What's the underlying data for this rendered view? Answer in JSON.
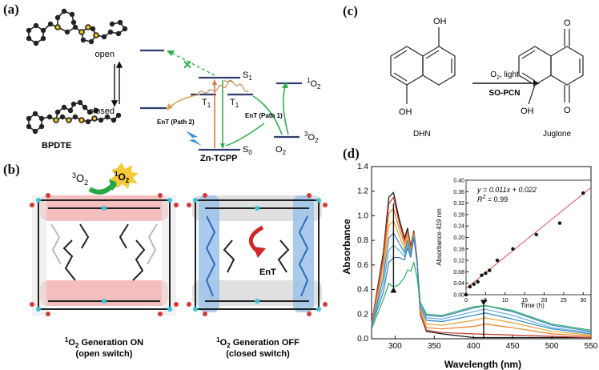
{
  "panel_labels": {
    "a": "(a)",
    "b": "(b)",
    "c": "(c)",
    "d": "(d)"
  },
  "panel_a": {
    "state_open": "open",
    "state_closed": "closed",
    "molecule_name": "BPDTE",
    "s1": "S",
    "s1_sub": "1",
    "t1_left": "T",
    "t1_left_sub": "1",
    "t1_right": "T",
    "t1_right_sub": "1",
    "s0": "S",
    "s0_sub": "0",
    "singlet_o2_sup": "1",
    "singlet_o2": "O",
    "singlet_o2_sub": "2",
    "triplet_o2_sup": "3",
    "triplet_o2": "O",
    "triplet_o2_sub": "2",
    "o2": "O",
    "o2_sub": "2",
    "path2_label": "EnT (Path 2)",
    "path1_label": "EnT (Path 1)",
    "sensitizer": "Zn-TCPP",
    "blocked_mark": "✕"
  },
  "panel_b": {
    "triplet_o2_sup": "3",
    "triplet_o2": "O",
    "triplet_o2_sub": "2",
    "singlet_o2_sup": "1",
    "singlet_o2": "O",
    "singlet_o2_sub": "2",
    "ent_label": "EnT",
    "left_caption_sup": "1",
    "left_caption_o": "O",
    "left_caption_sub": "2",
    "left_caption_rest": " Generation ON",
    "left_caption_line2": "(open switch)",
    "right_caption_sup": "1",
    "right_caption_o": "O",
    "right_caption_sub": "2",
    "right_caption_rest": " Generation OFF",
    "right_caption_line2": "(closed switch)"
  },
  "panel_c": {
    "oh_top": "OH",
    "oh_bottom": "OH",
    "oh_product": "OH",
    "o_top": "O",
    "o_bottom": "O",
    "conditions_top": "O",
    "conditions_top_sub": "2",
    "conditions_top_rest": ", light",
    "conditions_bottom": "SO-PCN",
    "reactant_name": "DHN",
    "product_name": "Juglone"
  },
  "chart_data": [
    {
      "type": "line",
      "title": "",
      "xlabel": "Wavelength (nm)",
      "ylabel": "Absorbance",
      "xlim": [
        270,
        550
      ],
      "ylim": [
        0,
        1.4
      ],
      "xticks": [
        300,
        350,
        400,
        450,
        500,
        550
      ],
      "yticks": [
        0.0,
        0.2,
        0.4,
        0.6,
        0.8,
        1.0,
        1.2,
        1.4
      ],
      "grid": false,
      "series_colors": [
        "#111111",
        "#c0392b",
        "#e67e22",
        "#e8a33a",
        "#2e86c1",
        "#5dade2",
        "#3a7bbf",
        "#27ae60"
      ],
      "series": [
        {
          "values": [
            [
              270,
              0.12
            ],
            [
              285,
              0.7
            ],
            [
              292,
              1.15
            ],
            [
              298,
              1.19
            ],
            [
              305,
              0.98
            ],
            [
              312,
              0.82
            ],
            [
              316,
              0.9
            ],
            [
              320,
              0.75
            ],
            [
              324,
              0.88
            ],
            [
              328,
              0.65
            ],
            [
              332,
              0.2
            ],
            [
              340,
              0.06
            ],
            [
              360,
              0.04
            ],
            [
              400,
              0.01
            ],
            [
              450,
              0.01
            ],
            [
              500,
              0.01
            ],
            [
              550,
              0.01
            ]
          ]
        },
        {
          "values": [
            [
              270,
              0.12
            ],
            [
              285,
              0.67
            ],
            [
              292,
              1.1
            ],
            [
              298,
              1.15
            ],
            [
              305,
              0.95
            ],
            [
              312,
              0.8
            ],
            [
              316,
              0.88
            ],
            [
              320,
              0.73
            ],
            [
              324,
              0.87
            ],
            [
              328,
              0.64
            ],
            [
              332,
              0.2
            ],
            [
              340,
              0.07
            ],
            [
              360,
              0.05
            ],
            [
              400,
              0.04
            ],
            [
              450,
              0.03
            ],
            [
              500,
              0.02
            ],
            [
              550,
              0.01
            ]
          ]
        },
        {
          "values": [
            [
              270,
              0.11
            ],
            [
              285,
              0.62
            ],
            [
              292,
              1.02
            ],
            [
              298,
              1.06
            ],
            [
              305,
              0.9
            ],
            [
              312,
              0.77
            ],
            [
              316,
              0.86
            ],
            [
              320,
              0.72
            ],
            [
              324,
              0.86
            ],
            [
              328,
              0.63
            ],
            [
              332,
              0.22
            ],
            [
              340,
              0.09
            ],
            [
              360,
              0.08
            ],
            [
              400,
              0.1
            ],
            [
              415,
              0.12
            ],
            [
              450,
              0.09
            ],
            [
              500,
              0.04
            ],
            [
              550,
              0.02
            ]
          ]
        },
        {
          "values": [
            [
              270,
              0.11
            ],
            [
              285,
              0.56
            ],
            [
              292,
              0.92
            ],
            [
              298,
              0.96
            ],
            [
              305,
              0.84
            ],
            [
              312,
              0.73
            ],
            [
              316,
              0.83
            ],
            [
              320,
              0.7
            ],
            [
              324,
              0.85
            ],
            [
              328,
              0.63
            ],
            [
              332,
              0.24
            ],
            [
              340,
              0.12
            ],
            [
              360,
              0.11
            ],
            [
              400,
              0.15
            ],
            [
              415,
              0.17
            ],
            [
              450,
              0.13
            ],
            [
              500,
              0.06
            ],
            [
              550,
              0.03
            ]
          ]
        },
        {
          "values": [
            [
              270,
              0.1
            ],
            [
              285,
              0.5
            ],
            [
              292,
              0.82
            ],
            [
              298,
              0.86
            ],
            [
              305,
              0.78
            ],
            [
              312,
              0.7
            ],
            [
              316,
              0.8
            ],
            [
              320,
              0.68
            ],
            [
              324,
              0.84
            ],
            [
              328,
              0.62
            ],
            [
              332,
              0.26
            ],
            [
              340,
              0.15
            ],
            [
              360,
              0.14
            ],
            [
              400,
              0.19
            ],
            [
              415,
              0.21
            ],
            [
              450,
              0.16
            ],
            [
              500,
              0.08
            ],
            [
              550,
              0.04
            ]
          ]
        },
        {
          "values": [
            [
              270,
              0.1
            ],
            [
              285,
              0.44
            ],
            [
              292,
              0.72
            ],
            [
              298,
              0.76
            ],
            [
              305,
              0.72
            ],
            [
              312,
              0.67
            ],
            [
              316,
              0.77
            ],
            [
              320,
              0.67
            ],
            [
              324,
              0.83
            ],
            [
              328,
              0.62
            ],
            [
              332,
              0.28
            ],
            [
              340,
              0.17
            ],
            [
              360,
              0.16
            ],
            [
              400,
              0.22
            ],
            [
              415,
              0.24
            ],
            [
              450,
              0.19
            ],
            [
              500,
              0.09
            ],
            [
              550,
              0.05
            ]
          ]
        },
        {
          "values": [
            [
              270,
              0.1
            ],
            [
              285,
              0.38
            ],
            [
              292,
              0.62
            ],
            [
              298,
              0.66
            ],
            [
              305,
              0.66
            ],
            [
              312,
              0.64
            ],
            [
              316,
              0.74
            ],
            [
              320,
              0.66
            ],
            [
              324,
              0.82
            ],
            [
              328,
              0.62
            ],
            [
              332,
              0.3
            ],
            [
              340,
              0.19
            ],
            [
              360,
              0.18
            ],
            [
              400,
              0.25
            ],
            [
              415,
              0.27
            ],
            [
              450,
              0.22
            ],
            [
              500,
              0.11
            ],
            [
              550,
              0.06
            ]
          ]
        },
        {
          "values": [
            [
              270,
              0.08
            ],
            [
              285,
              0.32
            ],
            [
              292,
              0.45
            ],
            [
              298,
              0.42
            ],
            [
              305,
              0.44
            ],
            [
              312,
              0.5
            ],
            [
              316,
              0.56
            ],
            [
              320,
              0.55
            ],
            [
              324,
              0.62
            ],
            [
              328,
              0.5
            ],
            [
              332,
              0.3
            ],
            [
              340,
              0.2
            ],
            [
              360,
              0.19
            ],
            [
              400,
              0.26
            ],
            [
              415,
              0.27
            ],
            [
              450,
              0.23
            ],
            [
              500,
              0.12
            ],
            [
              550,
              0.07
            ]
          ]
        }
      ]
    },
    {
      "type": "scatter",
      "title": "",
      "xlabel": "Time (h)",
      "ylabel": "Absorbance 419 nm",
      "xlim": [
        0,
        32
      ],
      "ylim": [
        0,
        0.4
      ],
      "xticks": [
        0,
        5,
        10,
        15,
        20,
        25,
        30
      ],
      "yticks": [
        0.0,
        0.04,
        0.08,
        0.12,
        0.16,
        0.2,
        0.24,
        0.28,
        0.32,
        0.36,
        0.4
      ],
      "grid": false,
      "points": [
        [
          0,
          0.0
        ],
        [
          1,
          0.028
        ],
        [
          2,
          0.037
        ],
        [
          3,
          0.045
        ],
        [
          4,
          0.068
        ],
        [
          5,
          0.075
        ],
        [
          6,
          0.085
        ],
        [
          8,
          0.12
        ],
        [
          12,
          0.16
        ],
        [
          18,
          0.21
        ],
        [
          24,
          0.25
        ],
        [
          30,
          0.355
        ]
      ],
      "fit": {
        "slope": 0.011,
        "intercept": 0.022
      },
      "annotation_line1": "y = 0.011x + 0.022",
      "annotation_r": "R",
      "annotation_r_sup": "2",
      "annotation_r_rest": " = 0.99"
    }
  ]
}
